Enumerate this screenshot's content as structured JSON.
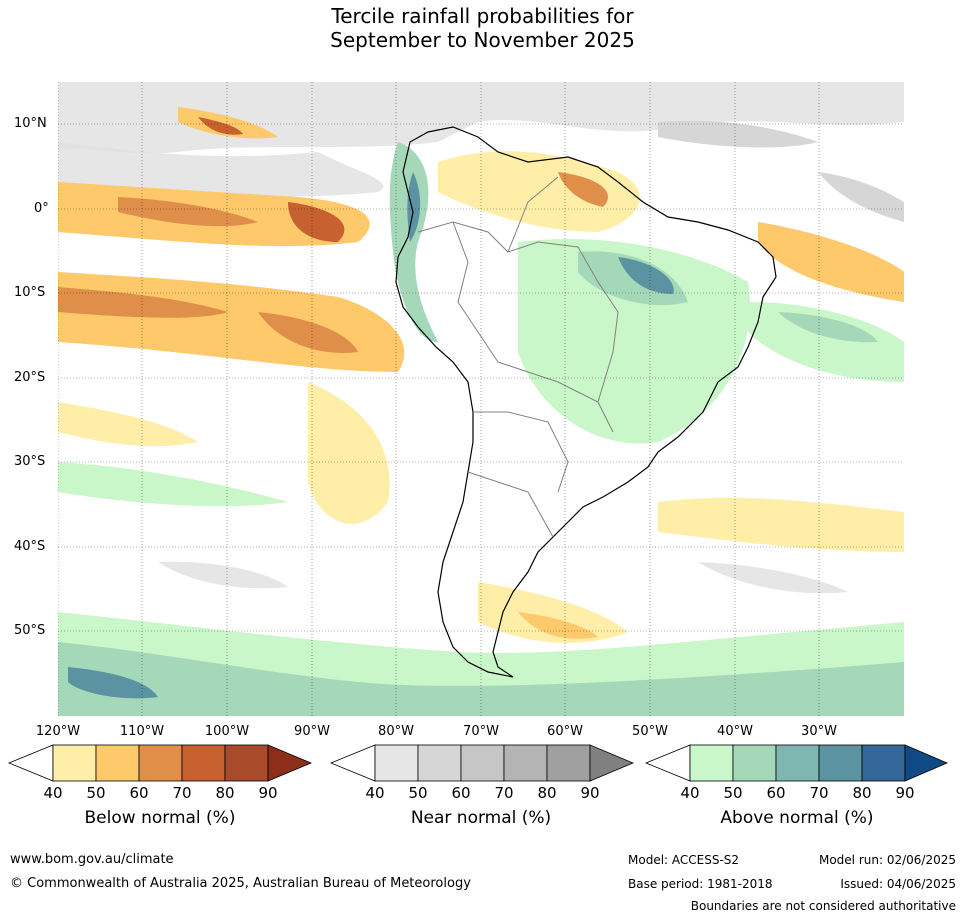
{
  "title": {
    "line1": "Tercile rainfall probabilities for",
    "line2": "September to November 2025"
  },
  "map": {
    "lat_labels": [
      "10°N",
      "0°",
      "10°S",
      "20°S",
      "30°S",
      "40°S",
      "50°S"
    ],
    "lon_labels": [
      "120°W",
      "110°W",
      "100°W",
      "90°W",
      "80°W",
      "70°W",
      "60°W",
      "50°W",
      "40°W",
      "30°W"
    ]
  },
  "colorbars": [
    {
      "name": "below",
      "label": "Below normal (%)",
      "ticks": [
        "40",
        "50",
        "60",
        "70",
        "80",
        "90"
      ],
      "colors": [
        "#ffeea8",
        "#fdc96a",
        "#e08f4a",
        "#c7612f",
        "#a84b2a",
        "#8c2e1a"
      ]
    },
    {
      "name": "near",
      "label": "Near normal (%)",
      "ticks": [
        "40",
        "50",
        "60",
        "70",
        "80",
        "90"
      ],
      "colors": [
        "#e6e6e6",
        "#d6d6d6",
        "#c6c6c6",
        "#b4b4b4",
        "#a0a0a0",
        "#808080"
      ]
    },
    {
      "name": "above",
      "label": "Above normal (%)",
      "ticks": [
        "40",
        "50",
        "60",
        "70",
        "80",
        "90"
      ],
      "colors": [
        "#c9f7c9",
        "#a5d8b8",
        "#7fb6b0",
        "#5b93a3",
        "#336699",
        "#104a85"
      ]
    }
  ],
  "footer": {
    "website": "www.bom.gov.au/climate",
    "copyright": "© Commonwealth of Australia 2025, Australian Bureau of Meteorology",
    "model": "Model: ACCESS-S2",
    "base_period": "Base period: 1981-2018",
    "model_run": "Model run: 02/06/2025",
    "issued": "Issued: 04/06/2025",
    "disclaimer": "Boundaries are not considered authoritative"
  }
}
